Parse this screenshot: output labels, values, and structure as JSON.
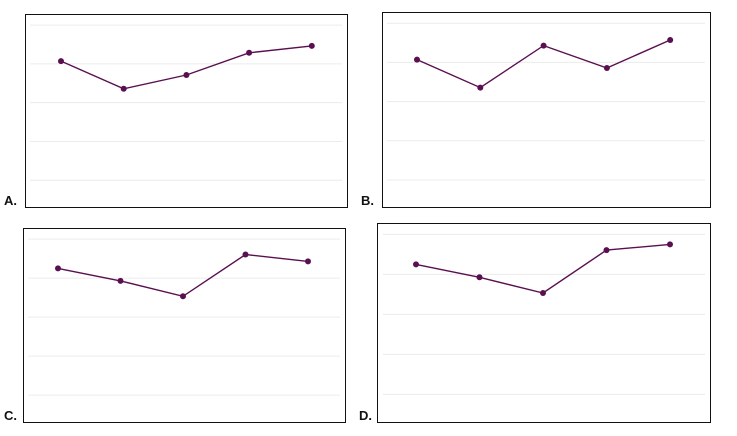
{
  "chart_data": [
    {
      "type": "line",
      "option_label": "A.",
      "x": [
        1,
        2,
        3,
        4,
        5
      ],
      "values": [
        7.6,
        5.6,
        6.6,
        8.2,
        8.7
      ],
      "ylim": [
        -3,
        11
      ],
      "grid": true,
      "line_color": "#5a1050"
    },
    {
      "type": "line",
      "option_label": "B.",
      "x": [
        1,
        2,
        3,
        4,
        5
      ],
      "values": [
        7.6,
        5.6,
        8.6,
        7.0,
        9.0
      ],
      "ylim": [
        -3,
        11
      ],
      "grid": true,
      "line_color": "#5a1050"
    },
    {
      "type": "line",
      "option_label": "C.",
      "x": [
        1,
        2,
        3,
        4,
        5
      ],
      "values": [
        8.1,
        7.2,
        6.1,
        9.1,
        8.6
      ],
      "ylim": [
        -3,
        11
      ],
      "grid": true,
      "line_color": "#5a1050"
    },
    {
      "type": "line",
      "option_label": "D.",
      "x": [
        1,
        2,
        3,
        4,
        5
      ],
      "values": [
        8.1,
        7.2,
        6.1,
        9.1,
        9.5
      ],
      "ylim": [
        -3,
        11
      ],
      "grid": true,
      "line_color": "#5a1050"
    }
  ]
}
